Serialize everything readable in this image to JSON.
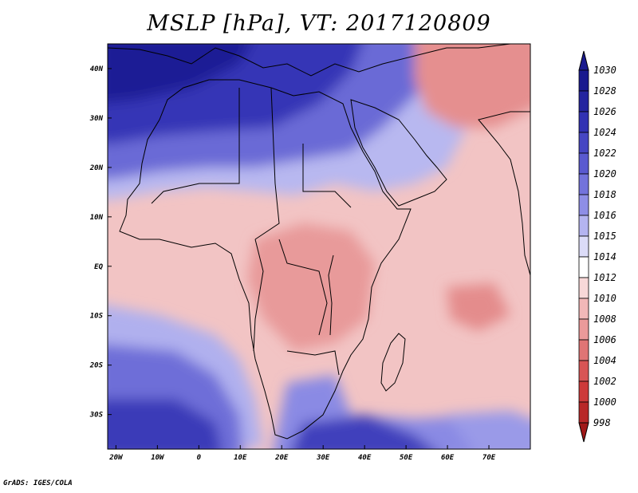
{
  "title": "MSLP [hPa], VT: 2017120809",
  "credit": "GrADS: IGES/COLA",
  "x_ticks": [
    "20W",
    "10W",
    "0",
    "10E",
    "20E",
    "30E",
    "40E",
    "50E",
    "60E",
    "70E"
  ],
  "y_ticks": [
    "40N",
    "30N",
    "20N",
    "10N",
    "EQ",
    "10S",
    "20S",
    "30S"
  ],
  "colorbar": {
    "labels": [
      "1030",
      "1028",
      "1026",
      "1024",
      "1022",
      "1020",
      "1018",
      "1016",
      "1015",
      "1014",
      "1012",
      "1010",
      "1008",
      "1006",
      "1004",
      "1002",
      "1000",
      "998"
    ],
    "colors": [
      "#1a1a8f",
      "#24249f",
      "#3232b3",
      "#4646c3",
      "#5a5ad0",
      "#7373dc",
      "#8e8ee6",
      "#b4b4f0",
      "#dcdcf8",
      "#ffffff",
      "#f8d8d8",
      "#f2b8b8",
      "#eb9a9a",
      "#e07575",
      "#d85555",
      "#cd3a3a",
      "#b82828",
      "#a01818"
    ]
  },
  "map": {
    "lon_range": [
      -22,
      80
    ],
    "lat_range": [
      -37,
      45
    ],
    "grid_lon": [
      -20,
      -10,
      0,
      10,
      20,
      30,
      40,
      50,
      60,
      70
    ],
    "grid_lat": [
      40,
      30,
      20,
      10,
      0,
      -10,
      -20,
      -30
    ]
  }
}
